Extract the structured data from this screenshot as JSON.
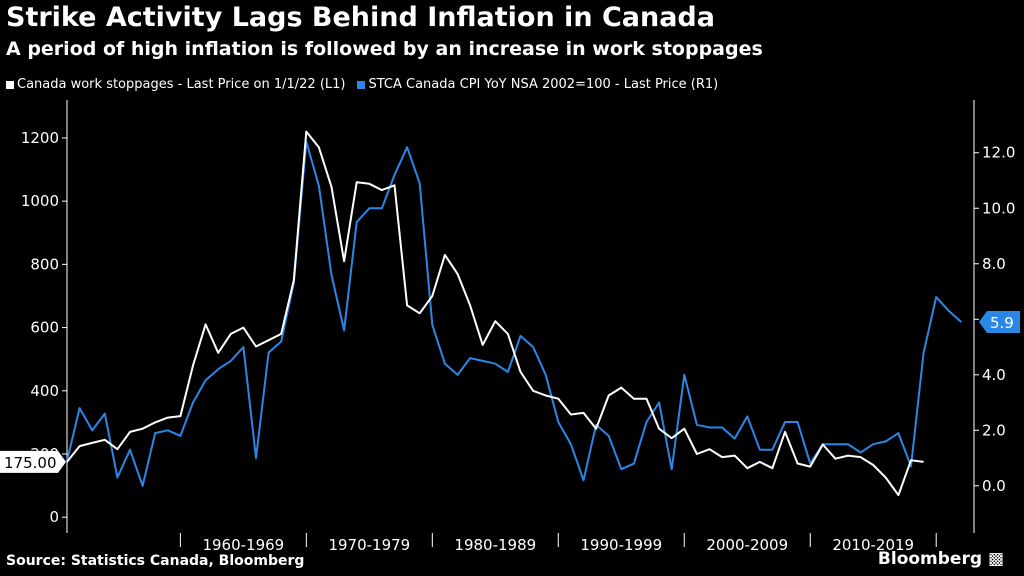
{
  "title": "Strike Activity Lags Behind Inflation in Canada",
  "subtitle": "A period of high inflation is followed by an increase in work stoppages",
  "legend": [
    {
      "label": "Canada work stoppages - Last Price on 1/1/22 (L1)",
      "color": "#ffffff"
    },
    {
      "label": "STCA Canada CPI YoY NSA 2002=100 - Last Price (R1)",
      "color": "#2b87e6"
    }
  ],
  "source": "Source: Statistics Canada, Bloomberg",
  "brand": "Bloomberg",
  "chart_data": {
    "type": "line",
    "x_start_year": 1951,
    "x_range": [
      1951,
      2023
    ],
    "x_tick_labels": [
      "1960-1969",
      "1970-1979",
      "1980-1989",
      "1990-1999",
      "2000-2009",
      "2010-2019"
    ],
    "left_axis": {
      "ylim": [
        -50,
        1320
      ],
      "ticks": [
        0,
        200,
        400,
        600,
        800,
        1000,
        1200
      ],
      "tick_labels": [
        "0",
        "200",
        "400",
        "600",
        "800",
        "1000",
        "1200"
      ]
    },
    "right_axis": {
      "ylim": [
        -1.7,
        13.9
      ],
      "ticks": [
        0,
        2,
        4,
        6,
        8,
        10,
        12
      ],
      "tick_labels": [
        "0.0",
        "2.0",
        "4.0",
        "6.0",
        "8.0",
        "10.0",
        "12.0"
      ]
    },
    "series": [
      {
        "name": "Canada work stoppages - Last Price on 1/1/22 (L1)",
        "axis": "left",
        "color": "#ffffff",
        "last_value_label": "175.00",
        "values": [
          175,
          225,
          235,
          245,
          215,
          270,
          280,
          300,
          315,
          320,
          480,
          610,
          520,
          580,
          600,
          540,
          560,
          580,
          750,
          1220,
          1170,
          1045,
          810,
          1060,
          1055,
          1035,
          1050,
          670,
          645,
          700,
          830,
          770,
          670,
          545,
          620,
          580,
          460,
          400,
          385,
          375,
          325,
          330,
          280,
          385,
          410,
          375,
          375,
          280,
          250,
          280,
          200,
          215,
          190,
          195,
          155,
          175,
          155,
          270,
          170,
          160,
          230,
          185,
          195,
          190,
          165,
          125,
          70,
          180,
          175
        ]
      },
      {
        "name": "STCA Canada CPI YoY NSA 2002=100 - Last Price (R1)",
        "axis": "right",
        "color": "#2b87e6",
        "last_value_label": "5.9",
        "values": [
          0.9,
          2.8,
          2.0,
          2.6,
          0.3,
          1.3,
          0.0,
          1.9,
          2.0,
          1.8,
          3.0,
          3.8,
          4.2,
          4.5,
          5.0,
          1.0,
          4.8,
          5.2,
          7.3,
          12.4,
          10.8,
          7.6,
          5.6,
          9.5,
          10.0,
          10.0,
          11.2,
          12.2,
          10.9,
          5.8,
          4.4,
          4.0,
          4.6,
          4.5,
          4.4,
          4.1,
          5.4,
          5.0,
          4.0,
          2.3,
          1.5,
          0.2,
          2.2,
          1.8,
          0.6,
          0.8,
          2.3,
          3.0,
          0.6,
          4.0,
          2.2,
          2.1,
          2.1,
          1.7,
          2.5,
          1.3,
          1.3,
          2.3,
          2.3,
          0.8,
          1.5,
          1.5,
          1.5,
          1.2,
          1.5,
          1.6,
          1.9,
          0.7,
          4.8,
          6.8,
          6.3,
          5.9
        ]
      }
    ]
  }
}
